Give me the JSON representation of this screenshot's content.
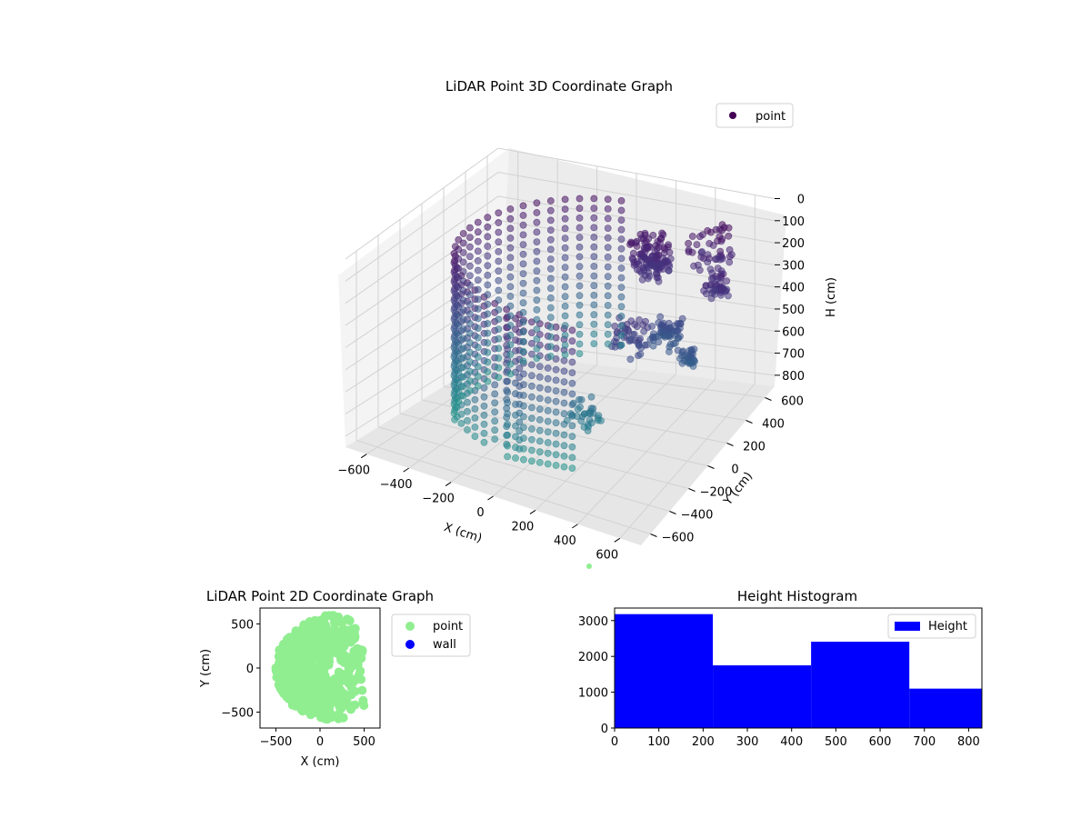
{
  "chart_data": [
    {
      "type": "scatter",
      "title": "LiDAR Point 3D Coordinate Graph",
      "xlabel": "X (cm)",
      "ylabel": "Y (cm)",
      "zlabel": "H (cm)",
      "x_ticks": [
        -600,
        -400,
        -200,
        0,
        200,
        400,
        600
      ],
      "y_ticks": [
        -600,
        -400,
        -200,
        0,
        200,
        400,
        600
      ],
      "z_ticks": [
        0,
        100,
        200,
        300,
        400,
        500,
        600,
        700,
        800
      ],
      "zlim": [
        0,
        850
      ],
      "z_inverted": true,
      "grid": true,
      "legend": {
        "placement": "top-right",
        "entries": [
          "point"
        ]
      },
      "series": [
        {
          "name": "point",
          "color": "#440154",
          "colormap": "viridis",
          "description_of_shape": "half-cylinder wall of points plus scattered clusters"
        }
      ],
      "stray_point": {
        "x": 600,
        "y": -600,
        "color": "#90ee90"
      }
    },
    {
      "type": "scatter",
      "title": "LiDAR Point 2D Coordinate Graph",
      "xlabel": "X (cm)",
      "ylabel": "Y (cm)",
      "x_ticks": [
        -500,
        0,
        500
      ],
      "y_ticks": [
        -500,
        0,
        500
      ],
      "xlim": [
        -680,
        680
      ],
      "ylim": [
        -680,
        680
      ],
      "legend": {
        "placement": "outside-right",
        "entries": [
          "point",
          "wall"
        ]
      },
      "series": [
        {
          "name": "point",
          "color": "#90ee90"
        },
        {
          "name": "wall",
          "color": "#0000ff"
        }
      ]
    },
    {
      "type": "bar",
      "title": "Height Histogram",
      "x_ticks": [
        0,
        100,
        200,
        300,
        400,
        500,
        600,
        700,
        800
      ],
      "y_ticks": [
        0,
        1000,
        2000,
        3000
      ],
      "xlim": [
        0,
        830
      ],
      "ylim": [
        0,
        3350
      ],
      "bin_edges": [
        0,
        222,
        444,
        666,
        830
      ],
      "values": [
        3180,
        1750,
        2410,
        1100
      ],
      "legend": {
        "placement": "top-right",
        "entries": [
          "Height"
        ]
      },
      "series": [
        {
          "name": "Height",
          "color": "#0000ff"
        }
      ]
    }
  ]
}
